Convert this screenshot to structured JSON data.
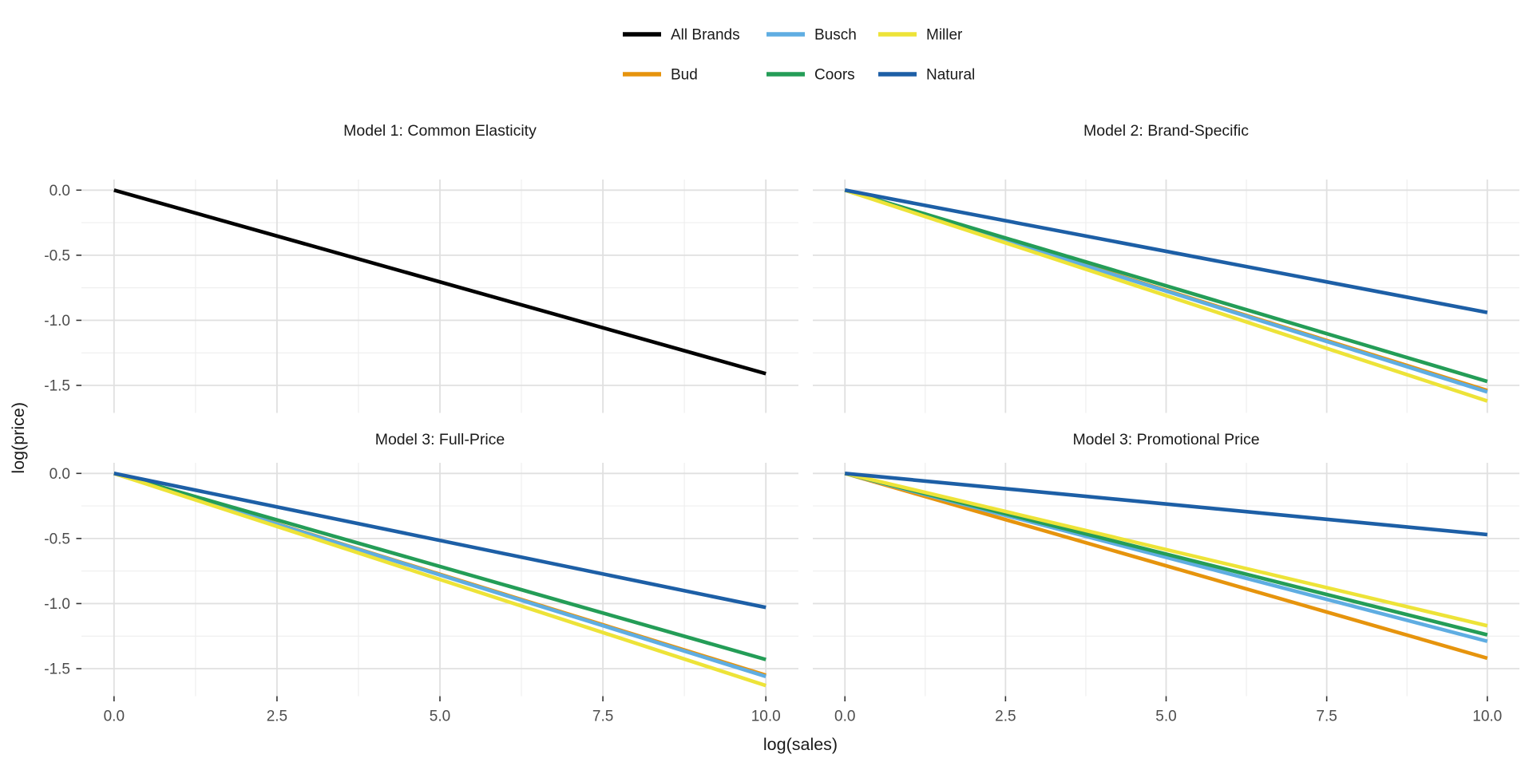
{
  "chart_data": {
    "type": "line",
    "title": "",
    "xlabel": "log(sales)",
    "ylabel": "log(price)",
    "grid": true,
    "legend_position": "top",
    "x_tick_labels": [
      "0.0",
      "2.5",
      "5.0",
      "7.5",
      "10.0"
    ],
    "x_tick_values": [
      0,
      2.5,
      5,
      7.5,
      10
    ],
    "y_tick_labels": [
      "0.0",
      "-0.5",
      "-1.0",
      "-1.5"
    ],
    "y_tick_values": [
      0,
      -0.5,
      -1,
      -1.5
    ],
    "x_minor_values": [
      1.25,
      3.75,
      6.25,
      8.75
    ],
    "y_minor_values": [
      -0.25,
      -0.75,
      -1.25
    ],
    "x_range_expanded": [
      -0.5,
      10.5
    ],
    "y_range_expanded": [
      0.0815,
      -1.7115
    ],
    "colors": {
      "All Brands": "#000000",
      "Bud": "#E6940D",
      "Busch": "#5FADE2",
      "Coors": "#249D57",
      "Miller": "#EDE338",
      "Natural": "#1D5FA6"
    },
    "grid_major_color": "#E0E0E0",
    "grid_minor_color": "#EFEFEF",
    "tick_color": "#333333",
    "tick_label_color": "#4D4D4D",
    "title_color": "#1A1A1A",
    "panels": [
      {
        "title": "Model 1: Common Elasticity",
        "series": [
          {
            "name": "All Brands",
            "x": [
              0,
              10
            ],
            "y": [
              0,
              -1.41
            ]
          }
        ]
      },
      {
        "title": "Model 2: Brand-Specific",
        "series": [
          {
            "name": "Bud",
            "x": [
              0,
              10
            ],
            "y": [
              0,
              -1.54
            ]
          },
          {
            "name": "Busch",
            "x": [
              0,
              10
            ],
            "y": [
              0,
              -1.55
            ]
          },
          {
            "name": "Coors",
            "x": [
              0,
              10
            ],
            "y": [
              0,
              -1.47
            ]
          },
          {
            "name": "Miller",
            "x": [
              0,
              10
            ],
            "y": [
              0,
              -1.62
            ]
          },
          {
            "name": "Natural",
            "x": [
              0,
              10
            ],
            "y": [
              0,
              -0.94
            ]
          }
        ]
      },
      {
        "title": "Model 3: Full-Price",
        "series": [
          {
            "name": "Bud",
            "x": [
              0,
              10
            ],
            "y": [
              0,
              -1.55
            ]
          },
          {
            "name": "Busch",
            "x": [
              0,
              10
            ],
            "y": [
              0,
              -1.56
            ]
          },
          {
            "name": "Coors",
            "x": [
              0,
              10
            ],
            "y": [
              0,
              -1.43
            ]
          },
          {
            "name": "Miller",
            "x": [
              0,
              10
            ],
            "y": [
              0,
              -1.63
            ]
          },
          {
            "name": "Natural",
            "x": [
              0,
              10
            ],
            "y": [
              0,
              -1.03
            ]
          }
        ]
      },
      {
        "title": "Model 3: Promotional Price",
        "series": [
          {
            "name": "Bud",
            "x": [
              0,
              10
            ],
            "y": [
              0,
              -1.42
            ]
          },
          {
            "name": "Busch",
            "x": [
              0,
              10
            ],
            "y": [
              0,
              -1.29
            ]
          },
          {
            "name": "Coors",
            "x": [
              0,
              10
            ],
            "y": [
              0,
              -1.24
            ]
          },
          {
            "name": "Miller",
            "x": [
              0,
              10
            ],
            "y": [
              0,
              -1.17
            ]
          },
          {
            "name": "Natural",
            "x": [
              0,
              10
            ],
            "y": [
              0,
              -0.47
            ]
          }
        ]
      }
    ],
    "legend": {
      "rows": [
        [
          "All Brands",
          "Busch",
          "Miller"
        ],
        [
          "Bud",
          "Coors",
          "Natural"
        ]
      ]
    }
  }
}
